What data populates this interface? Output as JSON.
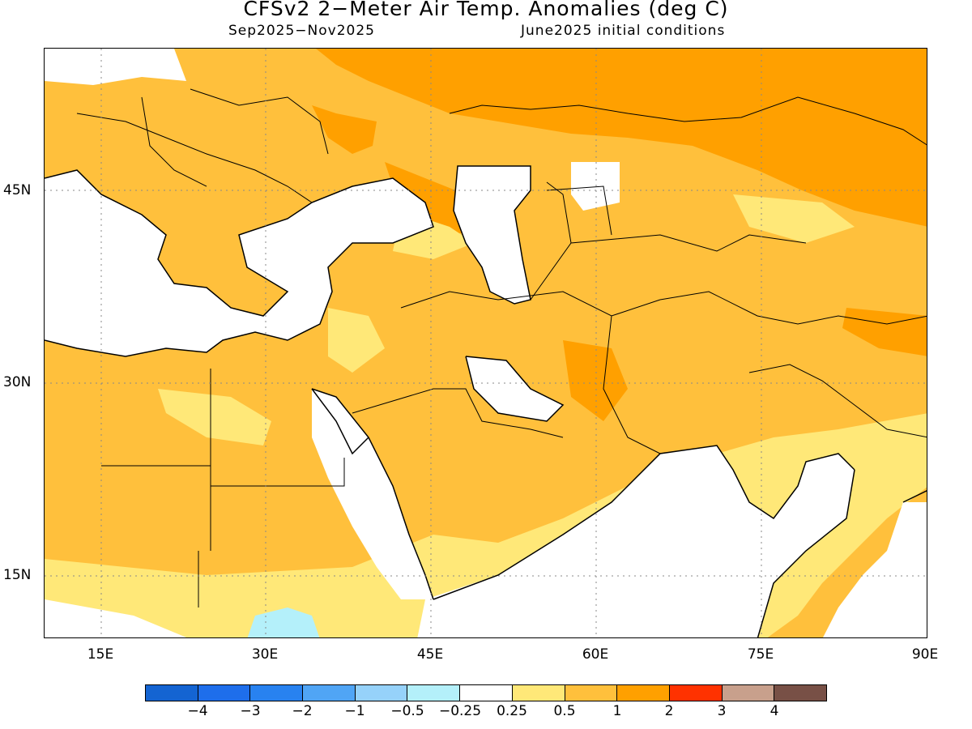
{
  "title": "CFSv2 2−Meter Air Temp. Anomalies (deg C)",
  "subtitle_left": "Sep2025−Nov2025",
  "subtitle_right": "June2025 initial conditions",
  "map": {
    "lat_labels": [
      "45N",
      "30N",
      "15N"
    ],
    "lon_labels": [
      "15E",
      "30E",
      "45E",
      "60E",
      "75E",
      "90E"
    ],
    "lat_range": [
      10,
      50.5
    ],
    "lon_range": [
      9.8,
      90
    ],
    "dominant_anomaly": "0.5 to 1 over most land; 1 to 2 over Russia, Kazakhstan and Turkey north; near-zero over oceans and southern India",
    "features": [
      "coastlines",
      "country borders",
      "dotted lat/lon grid"
    ]
  },
  "colorbar": {
    "colors": [
      "#1464d2",
      "#1e6eeb",
      "#2882f0",
      "#50a5f5",
      "#96d2fa",
      "#b4f0fa",
      "#ffffff",
      "#ffe878",
      "#ffc03c",
      "#ffa000",
      "#ff3200",
      "#c8a08c",
      "#785046"
    ],
    "labels": [
      "−4",
      "−3",
      "−2",
      "−1",
      "−0.5",
      "−0.25",
      "0.25",
      "0.5",
      "1",
      "2",
      "3",
      "4"
    ]
  }
}
